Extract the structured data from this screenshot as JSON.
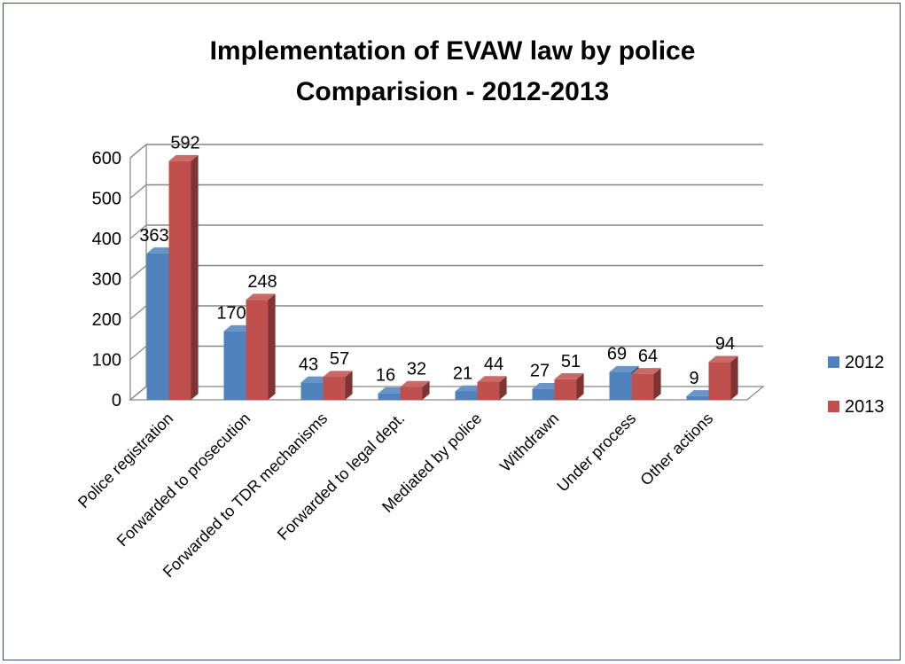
{
  "chart_data": {
    "type": "bar",
    "title": "Implementation of EVAW law by police",
    "subtitle": "Comparision - 2012-2013",
    "categories": [
      "Police registration",
      "Forwarded to prosecution",
      "Forwarded to TDR mechanisms",
      "Forwarded to legal dept.",
      "Mediated by police",
      "Withdrawn",
      "Under process",
      "Other actions"
    ],
    "series": [
      {
        "name": "2012",
        "values": [
          363,
          170,
          43,
          16,
          21,
          27,
          69,
          9
        ],
        "color": "#4f81bd"
      },
      {
        "name": "2013",
        "values": [
          592,
          248,
          57,
          32,
          44,
          51,
          64,
          94
        ],
        "color": "#c0504d"
      }
    ],
    "ylim": [
      0,
      600
    ],
    "yticks": [
      "0",
      "100",
      "200",
      "300",
      "400",
      "500",
      "600"
    ],
    "xlabel": "",
    "ylabel": "",
    "grid": true,
    "legend_position": "right",
    "style": "3d-clustered-column"
  }
}
